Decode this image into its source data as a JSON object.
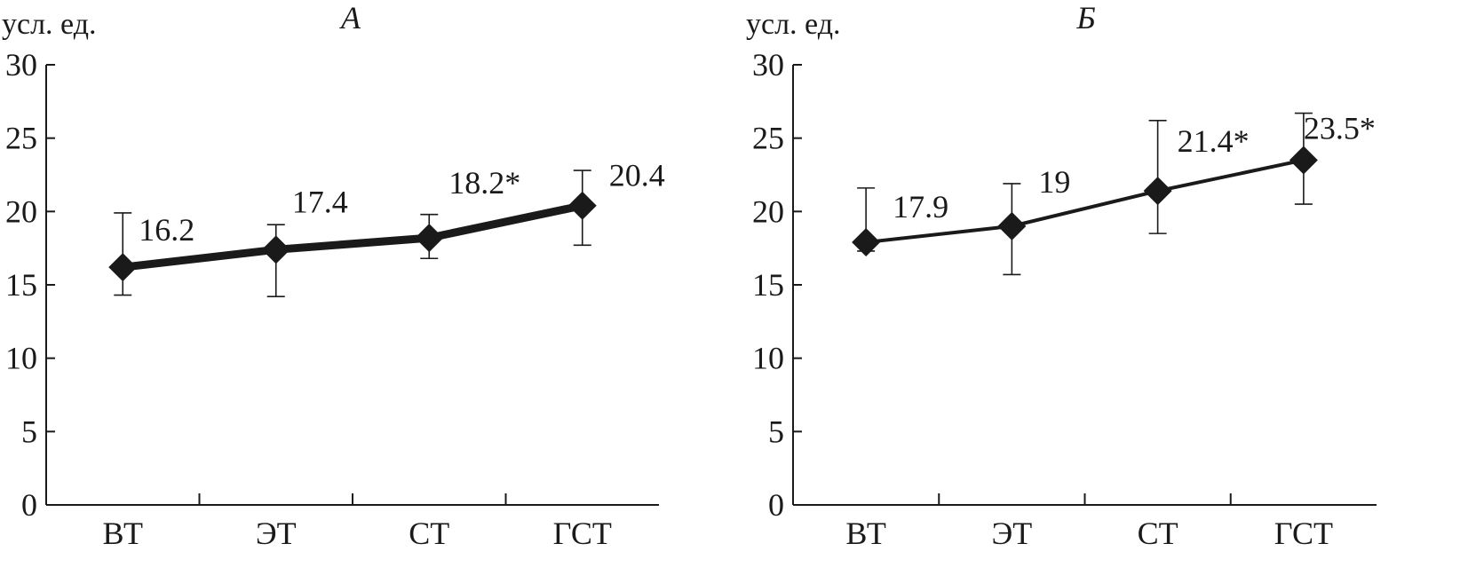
{
  "chart_data": [
    {
      "type": "line",
      "title": "А",
      "ylabel": "усл. ед.",
      "categories": [
        "ВТ",
        "ЭТ",
        "СТ",
        "ГСТ"
      ],
      "values": [
        16.2,
        17.4,
        18.2,
        20.4
      ],
      "error_low": [
        14.3,
        14.2,
        16.8,
        17.7
      ],
      "error_high": [
        19.9,
        19.1,
        19.8,
        22.8
      ],
      "data_labels": [
        "16.2",
        "17.4",
        "18.2*",
        "20.4"
      ],
      "ylim": [
        0,
        30
      ],
      "yticks": [
        0,
        5,
        10,
        15,
        20,
        25,
        30
      ],
      "grid": false,
      "color": "#1a1a1a"
    },
    {
      "type": "line",
      "title": "Б",
      "ylabel": "усл. ед.",
      "categories": [
        "ВТ",
        "ЭТ",
        "СТ",
        "ГСТ"
      ],
      "values": [
        17.9,
        19.0,
        21.4,
        23.5
      ],
      "error_low": [
        17.3,
        15.7,
        18.5,
        20.5
      ],
      "error_high": [
        21.6,
        21.9,
        26.2,
        26.7
      ],
      "data_labels": [
        "17.9",
        "19",
        "21.4*",
        "23.5*"
      ],
      "ylim": [
        0,
        30
      ],
      "yticks": [
        0,
        5,
        10,
        15,
        20,
        25,
        30
      ],
      "grid": false,
      "color": "#1a1a1a"
    }
  ]
}
